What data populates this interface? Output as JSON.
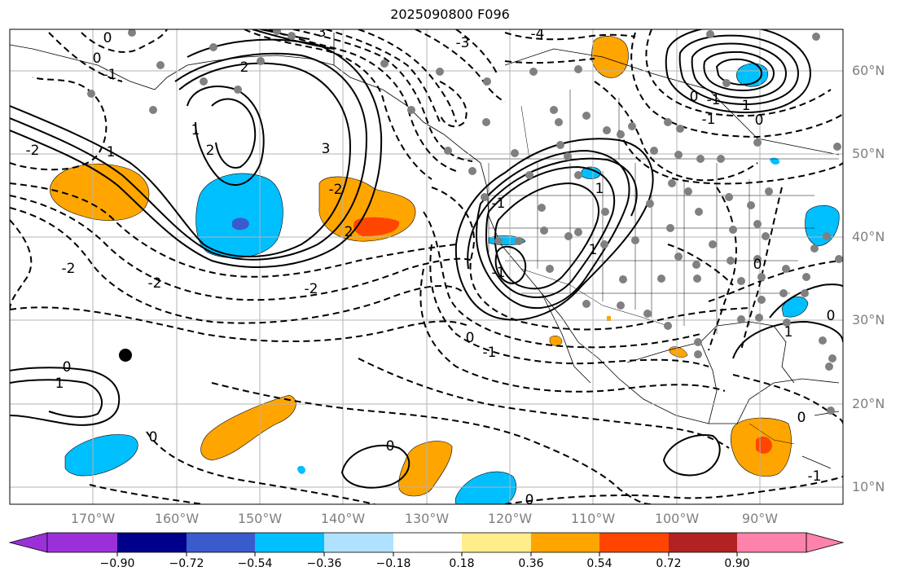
{
  "title": "2025090800 F096",
  "lat_labels": [
    "60°N",
    "50°N",
    "40°N",
    "30°N",
    "20°N",
    "10°N"
  ],
  "lon_labels": [
    "170°W",
    "160°W",
    "150°W",
    "140°W",
    "130°W",
    "120°W",
    "110°W",
    "100°W",
    "90°W"
  ],
  "contour_labels": [
    "0",
    "0",
    "-1",
    "0",
    "1",
    "1",
    "-2",
    "2",
    "2",
    "3",
    "-3",
    "-4",
    "2",
    "3",
    "-2",
    "-2",
    "-2",
    "-2",
    "0",
    "-1",
    "0",
    "1",
    "0",
    "0",
    "-1",
    "-1",
    "1",
    "1",
    "0",
    "0",
    "-1",
    "-1",
    "1",
    "0",
    "0",
    "1",
    "0",
    "-1",
    "0"
  ],
  "colorbar": {
    "labels": [
      "−0.90",
      "−0.72",
      "−0.54",
      "−0.36",
      "−0.18",
      "0.18",
      "0.36",
      "0.54",
      "0.72",
      "0.90"
    ],
    "colors": [
      "#9b30d9",
      "#00008b",
      "#3a5bcc",
      "#00bfff",
      "#b0e2ff",
      "#ffffff",
      "#ffec8b",
      "#ffa500",
      "#ff4500",
      "#b22222",
      "#ff82ab"
    ]
  }
}
